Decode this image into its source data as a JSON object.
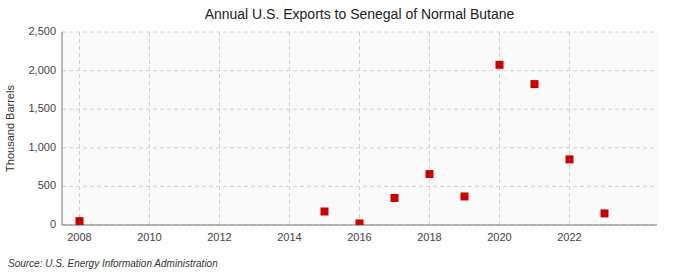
{
  "chart_data": {
    "type": "scatter",
    "title": "Annual U.S. Exports to Senegal of Normal Butane",
    "y_label": "Thousand Barrels",
    "annotation": "Source: U.S. Energy Information Administration",
    "x": [
      2008,
      2015,
      2016,
      2017,
      2018,
      2019,
      2020,
      2021,
      2022,
      2023
    ],
    "values": [
      50,
      175,
      20,
      350,
      660,
      370,
      2075,
      1825,
      850,
      150
    ],
    "color": "#cc0000",
    "marker": "square",
    "xlim": [
      2007.5,
      2024.5
    ],
    "xticks": [
      2008,
      2010,
      2012,
      2014,
      2016,
      2018,
      2020,
      2022
    ],
    "ylim": [
      0,
      2500
    ],
    "yticks": [
      0,
      500,
      {
        "value": 1000,
        "label": "1,000"
      },
      {
        "value": 1500,
        "label": "1,500"
      },
      {
        "value": 2000,
        "label": "2,000"
      },
      {
        "value": 2500,
        "label": "2,500"
      }
    ],
    "grid": true
  }
}
